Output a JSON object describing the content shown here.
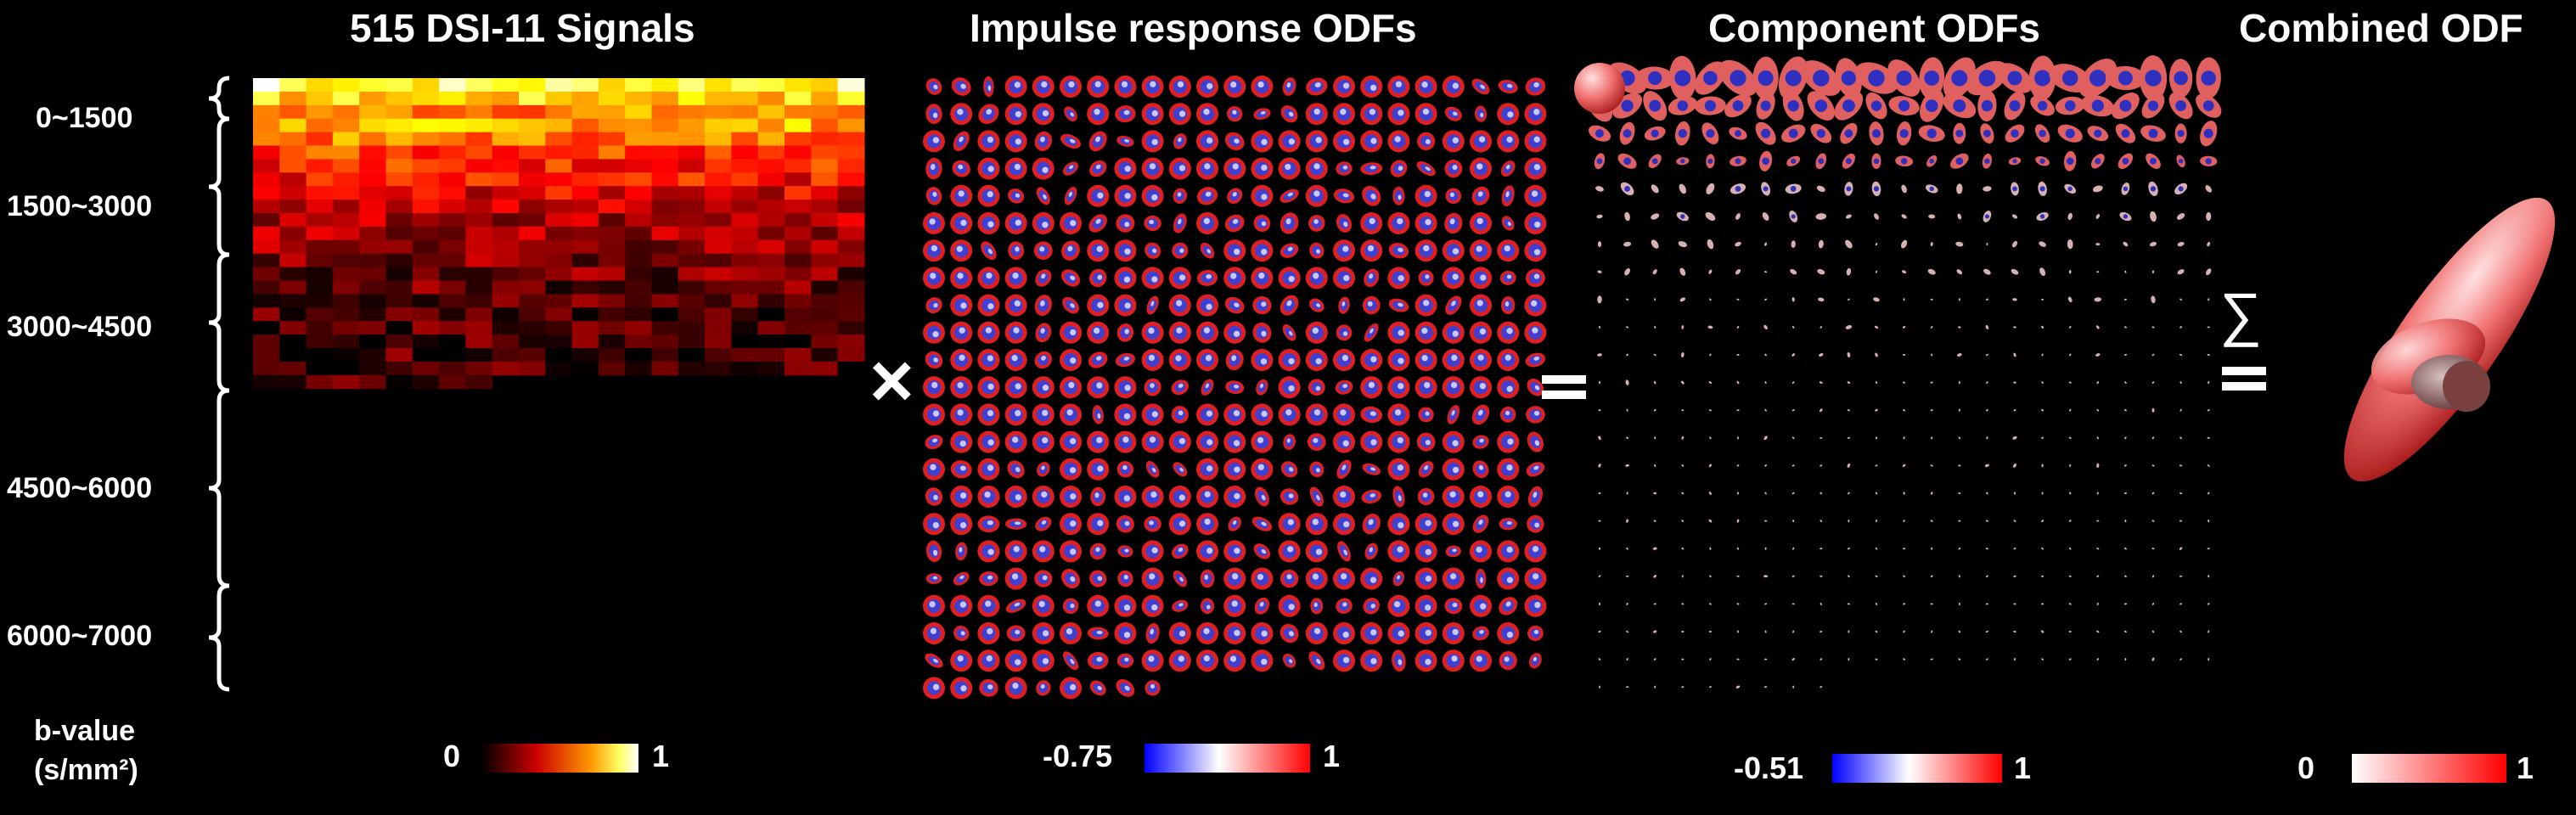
{
  "panels": {
    "signals": {
      "title": "515 DSI-11 Signals"
    },
    "impulse": {
      "title": "Impulse response ODFs"
    },
    "component": {
      "title": "Component ODFs"
    },
    "combined": {
      "title": "Combined ODF"
    }
  },
  "bvalue_ranges": [
    "0~1500",
    "1500~3000",
    "3000~4500",
    "4500~6000",
    "6000~7000"
  ],
  "bvalue_label": {
    "line1": "b-value",
    "line2": "(s/mm²)"
  },
  "operators": {
    "multiply": "×",
    "equals": "=",
    "sum": "∑"
  },
  "colorbars": {
    "signals": {
      "min": "0",
      "max": "1",
      "colors": [
        "#000000",
        "#cc0000",
        "#ff9900",
        "#ffff66",
        "#ffffff"
      ]
    },
    "impulse": {
      "min": "-0.75",
      "max": "1",
      "colors": [
        "#0000ff",
        "#ffffff",
        "#ff0000"
      ]
    },
    "component": {
      "min": "-0.51",
      "max": "1",
      "colors": [
        "#0000ff",
        "#ffffff",
        "#ff0000"
      ]
    },
    "combined": {
      "min": "0",
      "max": "1",
      "colors": [
        "#ffffff",
        "#ff0000"
      ]
    }
  }
}
